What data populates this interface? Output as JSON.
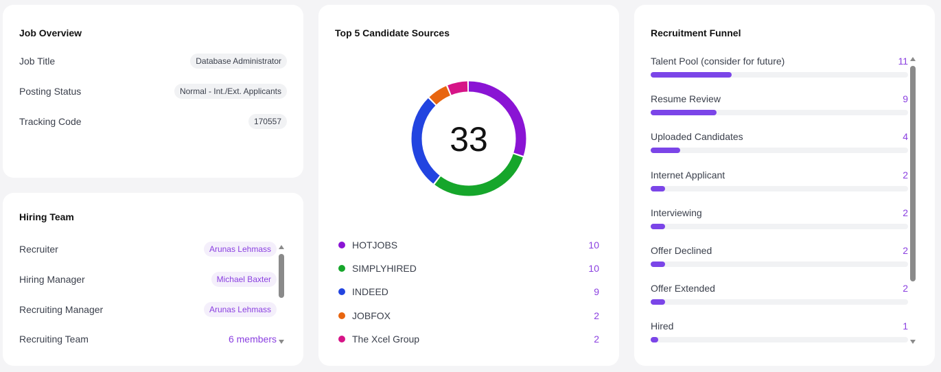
{
  "job_overview": {
    "title": "Job Overview",
    "rows": [
      {
        "label": "Job Title",
        "value": "Database Administrator"
      },
      {
        "label": "Posting Status",
        "value": "Normal - Int./Ext. Applicants"
      },
      {
        "label": "Tracking Code",
        "value": "170557"
      }
    ]
  },
  "hiring_team": {
    "title": "Hiring Team",
    "rows": [
      {
        "label": "Recruiter",
        "value": "Arunas Lehmass"
      },
      {
        "label": "Hiring Manager",
        "value": "Michael Baxter"
      },
      {
        "label": "Recruiting Manager",
        "value": "Arunas Lehmass"
      },
      {
        "label": "Recruiting Team",
        "value": "6 members"
      }
    ]
  },
  "sources": {
    "title": "Top 5 Candidate Sources",
    "total": "33",
    "chart_data": {
      "type": "pie",
      "categories": [
        "HOTJOBS",
        "SIMPLYHIRED",
        "INDEED",
        "JOBFOX",
        "The Xcel Group"
      ],
      "values": [
        10,
        10,
        9,
        2,
        2
      ],
      "colors": [
        "#8a14d4",
        "#16a62b",
        "#2244e0",
        "#e8650f",
        "#d61487"
      ]
    },
    "legend": [
      {
        "label": "HOTJOBS",
        "value": "10",
        "color": "#8a14d4"
      },
      {
        "label": "SIMPLYHIRED",
        "value": "10",
        "color": "#16a62b"
      },
      {
        "label": "INDEED",
        "value": "9",
        "color": "#2244e0"
      },
      {
        "label": "JOBFOX",
        "value": "2",
        "color": "#e8650f"
      },
      {
        "label": "The Xcel Group",
        "value": "2",
        "color": "#d61487"
      }
    ]
  },
  "funnel": {
    "title": "Recruitment Funnel",
    "max": 35,
    "stages": [
      {
        "label": "Talent Pool (consider for future)",
        "value": "11",
        "count": 11
      },
      {
        "label": "Resume Review",
        "value": "9",
        "count": 9
      },
      {
        "label": "Uploaded Candidates",
        "value": "4",
        "count": 4
      },
      {
        "label": "Internet Applicant",
        "value": "2",
        "count": 2
      },
      {
        "label": "Interviewing",
        "value": "2",
        "count": 2
      },
      {
        "label": "Offer Declined",
        "value": "2",
        "count": 2
      },
      {
        "label": "Offer Extended",
        "value": "2",
        "count": 2
      },
      {
        "label": "Hired",
        "value": "1",
        "count": 1
      }
    ]
  },
  "colors": {
    "accent": "#8a3fe0",
    "bar": "#7b45e8"
  }
}
